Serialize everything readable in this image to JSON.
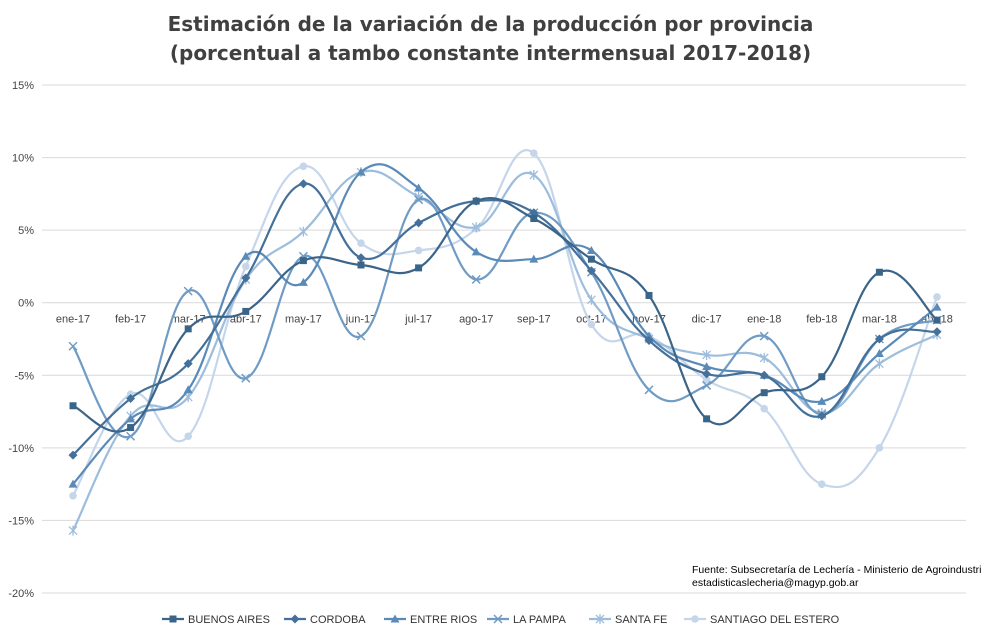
{
  "chart_data": {
    "type": "line",
    "title": [
      "Estimación de la variación de la producción por provincia",
      "(porcentual a tambo constante intermensual 2017-2018)"
    ],
    "categories": [
      "ene-17",
      "feb-17",
      "mar-17",
      "abr-17",
      "may-17",
      "jun-17",
      "jul-17",
      "ago-17",
      "sep-17",
      "oct-17",
      "nov-17",
      "dic-17",
      "ene-18",
      "feb-18",
      "mar-18",
      "abr-18"
    ],
    "y_ticks": [
      "15%",
      "10%",
      "5%",
      "0%",
      "-5%",
      "-10%",
      "-15%",
      "-20%"
    ],
    "ylim": [
      -20,
      15
    ],
    "grid": true,
    "legend_position": "bottom",
    "series": [
      {
        "name": "BUENOS AIRES",
        "color": "#3b6489",
        "marker": "square",
        "values": [
          -7.1,
          -8.6,
          -1.8,
          -0.6,
          2.9,
          2.6,
          2.4,
          7.0,
          5.8,
          3.0,
          0.5,
          -8.0,
          -6.2,
          -5.1,
          2.1,
          -1.2
        ]
      },
      {
        "name": "CORDOBA",
        "color": "#44709a",
        "marker": "diamond",
        "values": [
          -10.5,
          -6.6,
          -4.2,
          1.7,
          8.2,
          3.1,
          5.5,
          7.0,
          6.2,
          2.2,
          -2.6,
          -4.9,
          -5.0,
          -7.8,
          -2.5,
          -2.0
        ]
      },
      {
        "name": "ENTRE RIOS",
        "color": "#5a8ab8",
        "marker": "triangle",
        "values": [
          -12.5,
          -8.0,
          -6.0,
          3.2,
          1.4,
          9.0,
          7.9,
          3.5,
          3.0,
          3.6,
          -2.3,
          -4.4,
          -5.0,
          -6.8,
          -3.5,
          -0.3
        ]
      },
      {
        "name": "LA PAMPA",
        "color": "#6f9bc4",
        "marker": "x",
        "values": [
          -3.0,
          -9.2,
          0.8,
          -5.2,
          3.2,
          -2.3,
          7.1,
          1.6,
          6.2,
          2.1,
          -6.0,
          -5.7,
          -2.3,
          -7.7,
          -2.5,
          -1.2
        ]
      },
      {
        "name": "SANTA FE",
        "color": "#9dbddc",
        "marker": "star",
        "values": [
          -15.7,
          -7.8,
          -6.5,
          1.6,
          4.9,
          9.0,
          7.3,
          5.2,
          8.8,
          0.2,
          -2.5,
          -3.6,
          -3.8,
          -7.6,
          -4.2,
          -2.2
        ]
      },
      {
        "name": "SANTIAGO DEL ESTERO",
        "color": "#c5d6ea",
        "marker": "circle",
        "values": [
          -13.3,
          -6.3,
          -9.2,
          2.5,
          9.4,
          4.1,
          3.6,
          5.1,
          10.3,
          -1.5,
          -2.3,
          -5.3,
          -7.3,
          -12.5,
          -10.0,
          0.4
        ]
      }
    ],
    "source": [
      "Fuente: Subsecretaría de Lechería - Ministerio de Agroindustria",
      "estadisticaslecheria@magyp.gob.ar"
    ]
  }
}
